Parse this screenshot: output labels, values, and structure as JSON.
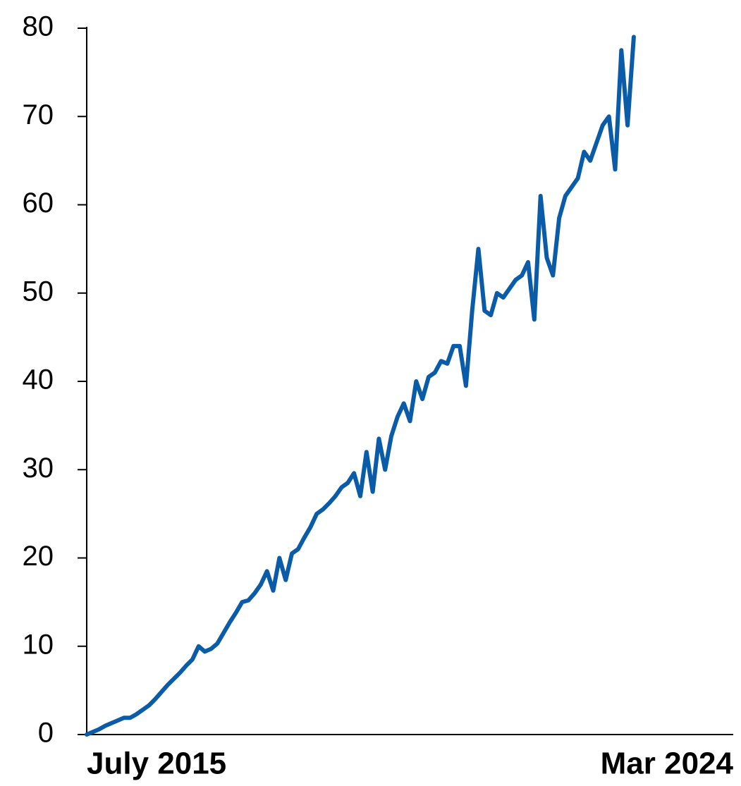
{
  "chart_data": {
    "type": "line",
    "categories": [
      "July 2015",
      null,
      null,
      null,
      null,
      null,
      null,
      null,
      null,
      null,
      null,
      null,
      null,
      null,
      null,
      null,
      null,
      null,
      null,
      null,
      null,
      null,
      null,
      null,
      null,
      null,
      null,
      null,
      null,
      null,
      null,
      null,
      null,
      null,
      null,
      null,
      null,
      null,
      null,
      null,
      null,
      null,
      null,
      null,
      null,
      null,
      null,
      null,
      null,
      null,
      null,
      null,
      null,
      null,
      null,
      null,
      null,
      null,
      null,
      null,
      null,
      null,
      null,
      null,
      null,
      null,
      null,
      null,
      null,
      null,
      null,
      null,
      null,
      null,
      null,
      null,
      null,
      null,
      null,
      null,
      null,
      null,
      null,
      null,
      null,
      null,
      null,
      null,
      null,
      null,
      null,
      null,
      null,
      null,
      null,
      null,
      null,
      null,
      null,
      null,
      null,
      null,
      null,
      null,
      "Mar 2024"
    ],
    "series": [
      {
        "color": "#0b5ca8",
        "values": [
          0,
          0.3,
          0.6,
          1.0,
          1.3,
          1.6,
          1.9,
          1.9,
          2.3,
          2.8,
          3.3,
          4.0,
          4.8,
          5.6,
          6.3,
          7.0,
          7.8,
          8.5,
          10.0,
          9.4,
          9.7,
          10.3,
          11.5,
          12.7,
          13.8,
          15.0,
          15.2,
          16.0,
          17.0,
          18.5,
          16.3,
          20.0,
          17.5,
          20.5,
          21.0,
          22.3,
          23.5,
          25.0,
          25.5,
          26.2,
          27.0,
          28.0,
          28.5,
          29.6,
          27.0,
          32.0,
          27.5,
          33.5,
          30.0,
          33.8,
          36.0,
          37.5,
          35.5,
          40.0,
          38.0,
          40.5,
          41.0,
          42.3,
          42.0,
          44.0,
          44.0,
          39.5,
          48.0,
          55.0,
          48.0,
          47.5,
          50.0,
          49.5,
          50.5,
          51.5,
          52.0,
          53.5,
          47.0,
          61.0,
          54.0,
          52.0,
          58.5,
          61.0,
          62.0,
          63.0,
          66.0,
          65.0,
          67.0,
          69.0,
          70.0,
          64.0,
          77.5,
          69.0,
          79.0,
          null,
          null,
          null,
          null,
          null,
          null,
          null,
          null,
          null,
          null,
          null,
          null,
          null,
          null,
          null,
          null
        ]
      }
    ],
    "ylim": [
      0,
      80
    ],
    "yticks": [
      0,
      10,
      20,
      30,
      40,
      50,
      60,
      70,
      80
    ]
  }
}
